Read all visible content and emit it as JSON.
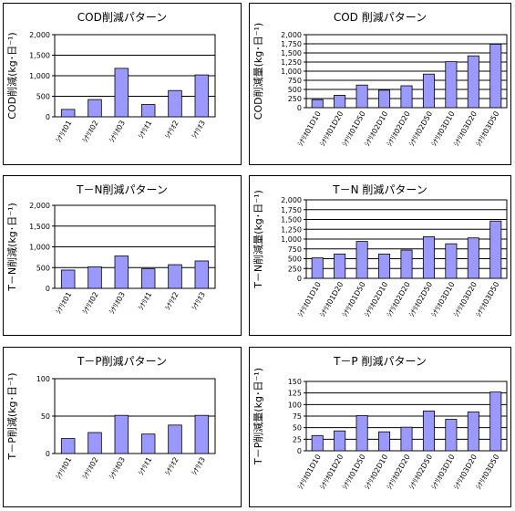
{
  "chart_data": [
    {
      "type": "bar",
      "title": "COD削減パターン",
      "ylabel": "COD削減(kg･日⁻¹)",
      "ylim": [
        0,
        2000
      ],
      "yticks": [
        0,
        500,
        1000,
        1500,
        2000
      ],
      "categories": [
        "ｼﾅﾘｵ01",
        "ｼﾅﾘｵ02",
        "ｼﾅﾘｵ03",
        "ｼﾅﾘｵ1",
        "ｼﾅﾘｵ2",
        "ｼﾅﾘｵ3"
      ],
      "values": [
        180,
        420,
        1180,
        300,
        640,
        1020
      ],
      "grid": true,
      "legend": "none"
    },
    {
      "type": "bar",
      "title": "COD 削減パターン",
      "ylabel": "COD削減量(kg･日⁻¹)",
      "ylim": [
        0,
        2000
      ],
      "yticks": [
        0,
        250,
        500,
        750,
        1000,
        1250,
        1500,
        1750,
        2000
      ],
      "categories": [
        "ｼﾅﾘｵ01D10",
        "ｼﾅﾘｵ01D20",
        "ｼﾅﾘｵ01D50",
        "ｼﾅﾘｵ02D10",
        "ｼﾅﾘｵ02D20",
        "ｼﾅﾘｵ02D50",
        "ｼﾅﾘｵ03D10",
        "ｼﾅﾘｵ03D20",
        "ｼﾅﾘｵ03D50"
      ],
      "values": [
        220,
        340,
        620,
        480,
        600,
        920,
        1260,
        1420,
        1740
      ],
      "grid": true,
      "legend": "none"
    },
    {
      "type": "bar",
      "title": "T－N削減パターン",
      "ylabel": "T－N削減(kg･日⁻¹)",
      "ylim": [
        0,
        2000
      ],
      "yticks": [
        0,
        500,
        1000,
        1500,
        2000
      ],
      "categories": [
        "ｼﾅﾘｵ01",
        "ｼﾅﾘｵ02",
        "ｼﾅﾘｵ03",
        "ｼﾅﾘｵ1",
        "ｼﾅﾘｵ2",
        "ｼﾅﾘｵ3"
      ],
      "values": [
        440,
        520,
        780,
        470,
        570,
        660
      ],
      "grid": true,
      "legend": "none"
    },
    {
      "type": "bar",
      "title": "T－N 削減パターン",
      "ylabel": "T－N削減量(kg･日⁻¹)",
      "ylim": [
        0,
        2000
      ],
      "yticks": [
        0,
        250,
        500,
        750,
        1000,
        1250,
        1500,
        1750,
        2000
      ],
      "categories": [
        "ｼﾅﾘｵ01D10",
        "ｼﾅﾘｵ01D20",
        "ｼﾅﾘｵ01D50",
        "ｼﾅﾘｵ02D10",
        "ｼﾅﾘｵ02D20",
        "ｼﾅﾘｵ02D50",
        "ｼﾅﾘｵ03D10",
        "ｼﾅﾘｵ03D20",
        "ｼﾅﾘｵ03D50"
      ],
      "values": [
        520,
        620,
        940,
        620,
        720,
        1060,
        880,
        1030,
        1460
      ],
      "grid": true,
      "legend": "none"
    },
    {
      "type": "bar",
      "title": "T－P削減パターン",
      "ylabel": "T－P削減(kg･日⁻¹)",
      "ylim": [
        0,
        100
      ],
      "yticks": [
        0,
        50,
        100
      ],
      "categories": [
        "ｼﾅﾘｵ01",
        "ｼﾅﾘｵ02",
        "ｼﾅﾘｵ03",
        "ｼﾅﾘｵ1",
        "ｼﾅﾘｵ2",
        "ｼﾅﾘｵ3"
      ],
      "values": [
        20,
        28,
        51,
        26,
        38,
        51
      ],
      "grid": true,
      "legend": "none"
    },
    {
      "type": "bar",
      "title": "T－P 削減パターン",
      "ylabel": "T－P削減量(kg･日⁻¹)",
      "ylim": [
        0,
        150
      ],
      "yticks": [
        0,
        25,
        50,
        75,
        100,
        125,
        150
      ],
      "categories": [
        "ｼﾅﾘｵ01D10",
        "ｼﾅﾘｵ01D20",
        "ｼﾅﾘｵ01D50",
        "ｼﾅﾘｵ02D10",
        "ｼﾅﾘｵ02D20",
        "ｼﾅﾘｵ02D50",
        "ｼﾅﾘｵ03D10",
        "ｼﾅﾘｵ03D20",
        "ｼﾅﾘｵ03D50"
      ],
      "values": [
        33,
        43,
        76,
        41,
        51,
        86,
        68,
        84,
        127
      ],
      "grid": true,
      "legend": "none"
    }
  ],
  "colors": {
    "bar_fill": "#9999ff",
    "bar_stroke": "#000000",
    "plot_bg": "#ffffff",
    "grid": "#000000"
  }
}
